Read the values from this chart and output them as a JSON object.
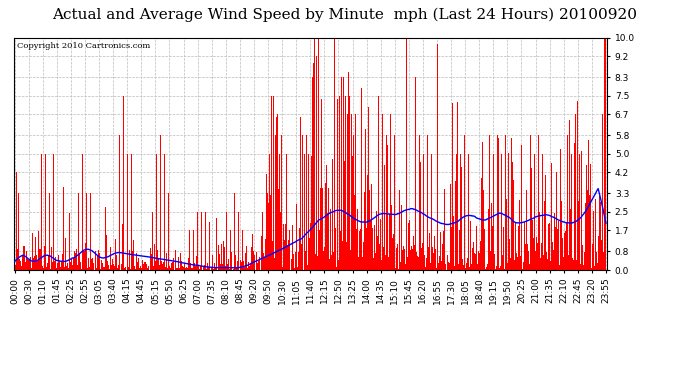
{
  "title": "Actual and Average Wind Speed by Minute  mph (Last 24 Hours) 20100920",
  "copyright_text": "Copyright 2010 Cartronics.com",
  "background_color": "#ffffff",
  "plot_bg_color": "#ffffff",
  "bar_color": "#ff0000",
  "line_color": "#0000ff",
  "yticks": [
    0.0,
    0.8,
    1.7,
    2.5,
    3.3,
    4.2,
    5.0,
    5.8,
    6.7,
    7.5,
    8.3,
    9.2,
    10.0
  ],
  "xtick_labels": [
    "00:00",
    "00:30",
    "01:10",
    "01:45",
    "02:25",
    "02:55",
    "03:05",
    "03:40",
    "04:15",
    "04:45",
    "05:15",
    "05:50",
    "06:25",
    "07:00",
    "07:35",
    "08:10",
    "08:45",
    "09:20",
    "09:50",
    "10:30",
    "11:05",
    "11:40",
    "12:15",
    "12:50",
    "13:25",
    "14:00",
    "14:35",
    "15:10",
    "15:45",
    "16:20",
    "16:55",
    "17:30",
    "18:05",
    "18:40",
    "19:15",
    "19:50",
    "20:25",
    "21:00",
    "21:35",
    "22:10",
    "22:45",
    "23:20",
    "23:55"
  ],
  "ymax": 10.0,
  "ymin": 0.0,
  "grid_color": "#bbbbbb",
  "title_fontsize": 11,
  "tick_fontsize": 6.5,
  "copyright_fontsize": 6
}
